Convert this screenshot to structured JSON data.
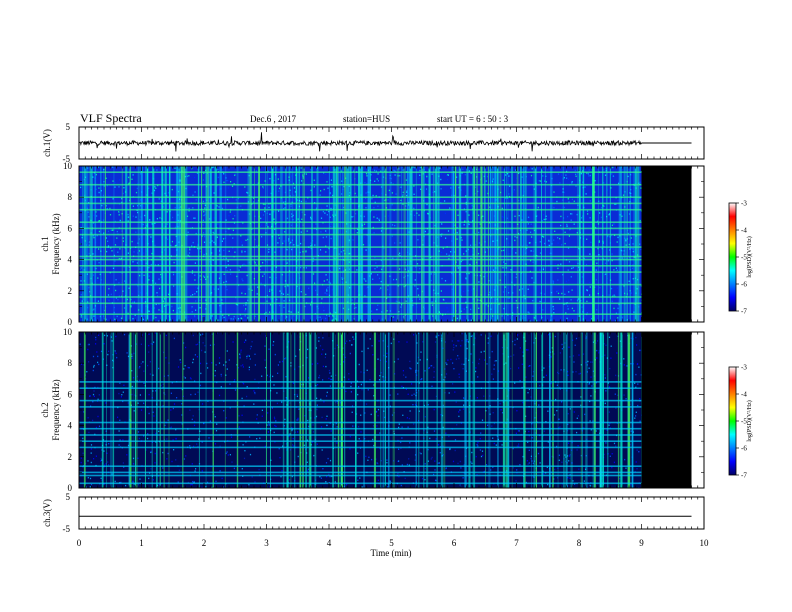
{
  "header": {
    "title": "VLF Spectra",
    "date": "Dec.6 , 2017",
    "station": "station=HUS",
    "start": "start UT =  6 : 50 : 3"
  },
  "chart_data": [
    {
      "type": "line",
      "panel": "ch.1 waveform",
      "ylabel": "ch.1(V)",
      "ylim": [
        -5,
        5
      ],
      "yticks": [
        "5",
        "-5"
      ],
      "x_range_min": [
        0,
        10
      ],
      "data_extent_min": [
        0,
        9
      ],
      "baseline_after_9min": 0
    },
    {
      "type": "heatmap",
      "panel": "ch.1 spectrogram",
      "ylabel": [
        "ch.1",
        "Frequency  (kHz)"
      ],
      "ylim": [
        0,
        10
      ],
      "yticks": [
        "0",
        "2",
        "4",
        "6",
        "8",
        "10"
      ],
      "x_range_min": [
        0,
        10
      ],
      "data_extent_min": [
        0,
        9
      ],
      "no_data_region_min": [
        9,
        9.8
      ],
      "narrowband_lines_khz": [
        0.5,
        1.2,
        1.6,
        2.4,
        3.2,
        3.6,
        4.0,
        4.2,
        4.8,
        5.6,
        6.0,
        6.4,
        7.2,
        7.6,
        8.0,
        8.8,
        9.6
      ],
      "colorbar": {
        "label": "log(PSD)(V²/Hz)",
        "range": [
          -7,
          -3
        ],
        "ticks": [
          "-3",
          "-4",
          "-5",
          "-6",
          "-7"
        ],
        "colors": [
          "#000066",
          "#0000ff",
          "#0080ff",
          "#00ffff",
          "#00ff00",
          "#ffff00",
          "#ff8000",
          "#ff0000",
          "#ffffff"
        ]
      }
    },
    {
      "type": "heatmap",
      "panel": "ch.2 spectrogram",
      "ylabel": [
        "ch.2",
        "Frequency  (kHz)"
      ],
      "ylim": [
        0,
        10
      ],
      "yticks": [
        "0",
        "2",
        "4",
        "6",
        "8",
        "10"
      ],
      "x_range_min": [
        0,
        10
      ],
      "data_extent_min": [
        0,
        9
      ],
      "no_data_region_min": [
        9,
        9.8
      ],
      "narrowband_lines_khz": [
        0.3,
        0.8,
        1.0,
        1.4,
        2.6,
        3.0,
        3.4,
        3.8,
        4.2,
        5.2,
        5.6,
        6.4,
        6.8
      ],
      "colorbar": {
        "label": "log(PSD)(V²/Hz)",
        "range": [
          -7,
          -3
        ],
        "ticks": [
          "-3",
          "-4",
          "-5",
          "-6",
          "-7"
        ],
        "colors": [
          "#000066",
          "#0000ff",
          "#0080ff",
          "#00ffff",
          "#00ff00",
          "#ffff00",
          "#ff8000",
          "#ff0000",
          "#ffffff"
        ]
      }
    },
    {
      "type": "line",
      "panel": "ch.3 waveform",
      "ylabel": "ch.3(V)",
      "ylim": [
        -5,
        5
      ],
      "yticks": [
        "5",
        "-5"
      ],
      "x_range_min": [
        0,
        10
      ],
      "constant_value": -1
    }
  ],
  "xaxis": {
    "label": "Time  (min)",
    "ticks": [
      "0",
      "1",
      "2",
      "3",
      "4",
      "5",
      "6",
      "7",
      "8",
      "9",
      "10"
    ]
  }
}
